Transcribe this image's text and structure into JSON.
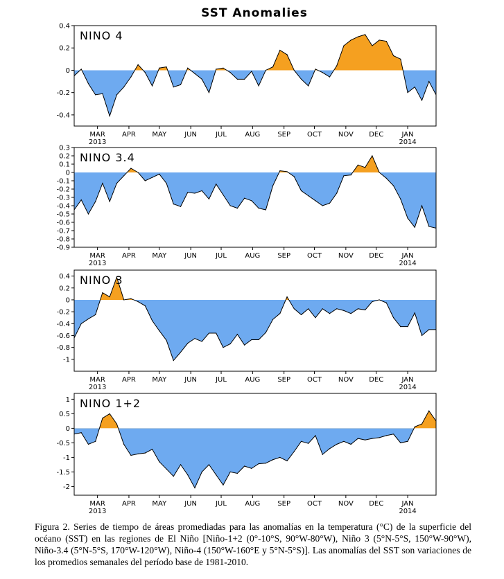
{
  "title": "SST Anomalies",
  "colors": {
    "positive": "#f5a020",
    "negative": "#6eaaf0",
    "line": "#000000"
  },
  "chart_data": [
    {
      "type": "area",
      "panel_label": "NINO 4",
      "ylim": [
        -0.5,
        0.4
      ],
      "yticks": [
        "0.4",
        "0.2",
        "0",
        "-0.2",
        "-0.4"
      ],
      "ytick_values": [
        0.4,
        0.2,
        0,
        -0.2,
        -0.4
      ],
      "x_tick_labels": [
        "MAR",
        "APR",
        "MAY",
        "JUN",
        "JUL",
        "AUG",
        "SEP",
        "OCT",
        "NOV",
        "DEC",
        "JAN"
      ],
      "year_labels": [
        "2013",
        "2014"
      ],
      "x": [
        "2013-02-06",
        "2013-02-13",
        "2013-02-20",
        "2013-02-27",
        "2013-03-06",
        "2013-03-13",
        "2013-03-20",
        "2013-03-27",
        "2013-04-03",
        "2013-04-10",
        "2013-04-17",
        "2013-04-24",
        "2013-05-01",
        "2013-05-08",
        "2013-05-15",
        "2013-05-22",
        "2013-05-29",
        "2013-06-05",
        "2013-06-12",
        "2013-06-19",
        "2013-06-26",
        "2013-07-03",
        "2013-07-10",
        "2013-07-17",
        "2013-07-24",
        "2013-07-31",
        "2013-08-07",
        "2013-08-14",
        "2013-08-21",
        "2013-08-28",
        "2013-09-04",
        "2013-09-11",
        "2013-09-18",
        "2013-09-25",
        "2013-10-02",
        "2013-10-09",
        "2013-10-16",
        "2013-10-23",
        "2013-10-30",
        "2013-11-06",
        "2013-11-13",
        "2013-11-20",
        "2013-11-27",
        "2013-12-04",
        "2013-12-11",
        "2013-12-18",
        "2013-12-25",
        "2014-01-01",
        "2014-01-08",
        "2014-01-15",
        "2014-01-22",
        "2014-01-29"
      ],
      "values": [
        -0.05,
        0.01,
        -0.12,
        -0.22,
        -0.21,
        -0.41,
        -0.22,
        -0.15,
        -0.06,
        0.05,
        -0.02,
        -0.14,
        0.02,
        0.03,
        -0.15,
        -0.13,
        0.02,
        -0.03,
        -0.08,
        -0.2,
        0.01,
        0.02,
        -0.02,
        -0.08,
        -0.08,
        -0.01,
        -0.14,
        0.0,
        0.03,
        0.18,
        0.14,
        0.0,
        -0.08,
        -0.14,
        0.01,
        -0.02,
        -0.06,
        0.04,
        0.22,
        0.27,
        0.3,
        0.32,
        0.22,
        0.27,
        0.26,
        0.13,
        0.1,
        -0.2,
        -0.15,
        -0.27,
        -0.1,
        -0.22
      ]
    },
    {
      "type": "area",
      "panel_label": "NINO 3.4",
      "ylim": [
        -0.9,
        0.3
      ],
      "yticks": [
        "0.3",
        "0.2",
        "0.1",
        "0",
        "-0.1",
        "-0.2",
        "-0.3",
        "-0.4",
        "-0.5",
        "-0.6",
        "-0.7",
        "-0.8",
        "-0.9"
      ],
      "ytick_values": [
        0.3,
        0.2,
        0.1,
        0,
        -0.1,
        -0.2,
        -0.3,
        -0.4,
        -0.5,
        -0.6,
        -0.7,
        -0.8,
        -0.9
      ],
      "x_tick_labels": [
        "MAR",
        "APR",
        "MAY",
        "JUN",
        "JUL",
        "AUG",
        "SEP",
        "OCT",
        "NOV",
        "DEC",
        "JAN"
      ],
      "year_labels": [
        "2013",
        "2014"
      ],
      "x": [
        "2013-02-06",
        "2013-02-13",
        "2013-02-20",
        "2013-02-27",
        "2013-03-06",
        "2013-03-13",
        "2013-03-20",
        "2013-03-27",
        "2013-04-03",
        "2013-04-10",
        "2013-04-17",
        "2013-04-24",
        "2013-05-01",
        "2013-05-08",
        "2013-05-15",
        "2013-05-22",
        "2013-05-29",
        "2013-06-05",
        "2013-06-12",
        "2013-06-19",
        "2013-06-26",
        "2013-07-03",
        "2013-07-10",
        "2013-07-17",
        "2013-07-24",
        "2013-07-31",
        "2013-08-07",
        "2013-08-14",
        "2013-08-21",
        "2013-08-28",
        "2013-09-04",
        "2013-09-11",
        "2013-09-18",
        "2013-09-25",
        "2013-10-02",
        "2013-10-09",
        "2013-10-16",
        "2013-10-23",
        "2013-10-30",
        "2013-11-06",
        "2013-11-13",
        "2013-11-20",
        "2013-11-27",
        "2013-12-04",
        "2013-12-11",
        "2013-12-18",
        "2013-12-25",
        "2014-01-01",
        "2014-01-08",
        "2014-01-15",
        "2014-01-22",
        "2014-01-29"
      ],
      "values": [
        -0.45,
        -0.33,
        -0.5,
        -0.35,
        -0.13,
        -0.35,
        -0.13,
        -0.04,
        0.05,
        0.0,
        -0.1,
        -0.06,
        -0.02,
        -0.13,
        -0.38,
        -0.41,
        -0.24,
        -0.25,
        -0.22,
        -0.32,
        -0.14,
        -0.27,
        -0.4,
        -0.43,
        -0.31,
        -0.34,
        -0.43,
        -0.45,
        -0.16,
        0.02,
        0.01,
        -0.05,
        -0.22,
        -0.28,
        -0.34,
        -0.4,
        -0.37,
        -0.25,
        -0.04,
        -0.03,
        0.09,
        0.06,
        0.2,
        0.0,
        -0.07,
        -0.16,
        -0.32,
        -0.55,
        -0.66,
        -0.4,
        -0.65,
        -0.67
      ]
    },
    {
      "type": "area",
      "panel_label": "NINO 3",
      "ylim": [
        -1.2,
        0.5
      ],
      "yticks": [
        "0.4",
        "0.2",
        "0",
        "-0.2",
        "-0.4",
        "-0.6",
        "-0.8",
        "-1"
      ],
      "ytick_values": [
        0.4,
        0.2,
        0,
        -0.2,
        -0.4,
        -0.6,
        -0.8,
        -1
      ],
      "x_tick_labels": [
        "MAR",
        "APR",
        "MAY",
        "JUN",
        "JUL",
        "AUG",
        "SEP",
        "OCT",
        "NOV",
        "DEC",
        "JAN"
      ],
      "year_labels": [
        "2013",
        "2014"
      ],
      "x": [
        "2013-02-06",
        "2013-02-13",
        "2013-02-20",
        "2013-02-27",
        "2013-03-06",
        "2013-03-13",
        "2013-03-20",
        "2013-03-27",
        "2013-04-03",
        "2013-04-10",
        "2013-04-17",
        "2013-04-24",
        "2013-05-01",
        "2013-05-08",
        "2013-05-15",
        "2013-05-22",
        "2013-05-29",
        "2013-06-05",
        "2013-06-12",
        "2013-06-19",
        "2013-06-26",
        "2013-07-03",
        "2013-07-10",
        "2013-07-17",
        "2013-07-24",
        "2013-07-31",
        "2013-08-07",
        "2013-08-14",
        "2013-08-21",
        "2013-08-28",
        "2013-09-04",
        "2013-09-11",
        "2013-09-18",
        "2013-09-25",
        "2013-10-02",
        "2013-10-09",
        "2013-10-16",
        "2013-10-23",
        "2013-10-30",
        "2013-11-06",
        "2013-11-13",
        "2013-11-20",
        "2013-11-27",
        "2013-12-04",
        "2013-12-11",
        "2013-12-18",
        "2013-12-25",
        "2014-01-01",
        "2014-01-08",
        "2014-01-15",
        "2014-01-22",
        "2014-01-29"
      ],
      "values": [
        -0.64,
        -0.4,
        -0.32,
        -0.25,
        0.12,
        0.05,
        0.38,
        0.0,
        0.02,
        -0.03,
        -0.1,
        -0.35,
        -0.52,
        -0.68,
        -1.02,
        -0.88,
        -0.73,
        -0.65,
        -0.7,
        -0.56,
        -0.56,
        -0.8,
        -0.74,
        -0.58,
        -0.76,
        -0.67,
        -0.67,
        -0.55,
        -0.33,
        -0.23,
        0.05,
        -0.15,
        -0.25,
        -0.15,
        -0.3,
        -0.15,
        -0.23,
        -0.15,
        -0.18,
        -0.23,
        -0.15,
        -0.17,
        -0.03,
        0.0,
        -0.05,
        -0.3,
        -0.45,
        -0.45,
        -0.22,
        -0.6,
        -0.5,
        -0.5
      ]
    },
    {
      "type": "area",
      "panel_label": "NINO 1+2",
      "ylim": [
        -2.3,
        1.2
      ],
      "yticks": [
        "1",
        "0.5",
        "0",
        "-0.5",
        "-1",
        "-1.5",
        "-2"
      ],
      "ytick_values": [
        1,
        0.5,
        0,
        -0.5,
        -1,
        -1.5,
        -2
      ],
      "x_tick_labels": [
        "MAR",
        "APR",
        "MAY",
        "JUN",
        "JUL",
        "AUG",
        "SEP",
        "OCT",
        "NOV",
        "DEC",
        "JAN"
      ],
      "year_labels": [
        "2013",
        "2014"
      ],
      "x": [
        "2013-02-06",
        "2013-02-13",
        "2013-02-20",
        "2013-02-27",
        "2013-03-06",
        "2013-03-13",
        "2013-03-20",
        "2013-03-27",
        "2013-04-03",
        "2013-04-10",
        "2013-04-17",
        "2013-04-24",
        "2013-05-01",
        "2013-05-08",
        "2013-05-15",
        "2013-05-22",
        "2013-05-29",
        "2013-06-05",
        "2013-06-12",
        "2013-06-19",
        "2013-06-26",
        "2013-07-03",
        "2013-07-10",
        "2013-07-17",
        "2013-07-24",
        "2013-07-31",
        "2013-08-07",
        "2013-08-14",
        "2013-08-21",
        "2013-08-28",
        "2013-09-04",
        "2013-09-11",
        "2013-09-18",
        "2013-09-25",
        "2013-10-02",
        "2013-10-09",
        "2013-10-16",
        "2013-10-23",
        "2013-10-30",
        "2013-11-06",
        "2013-11-13",
        "2013-11-20",
        "2013-11-27",
        "2013-12-04",
        "2013-12-11",
        "2013-12-18",
        "2013-12-25",
        "2014-01-01",
        "2014-01-08",
        "2014-01-15",
        "2014-01-22",
        "2014-01-29"
      ],
      "values": [
        -0.2,
        -0.15,
        -0.55,
        -0.45,
        0.35,
        0.5,
        0.15,
        -0.55,
        -0.93,
        -0.88,
        -0.85,
        -0.72,
        -1.15,
        -1.4,
        -1.65,
        -1.25,
        -1.6,
        -2.05,
        -1.5,
        -1.25,
        -1.6,
        -1.95,
        -1.5,
        -1.55,
        -1.3,
        -1.38,
        -1.22,
        -1.2,
        -1.08,
        -1.0,
        -1.12,
        -0.8,
        -0.45,
        -0.52,
        -0.25,
        -0.9,
        -0.7,
        -0.55,
        -0.45,
        -0.55,
        -0.35,
        -0.4,
        -0.35,
        -0.32,
        -0.25,
        -0.2,
        -0.5,
        -0.45,
        0.05,
        0.15,
        0.6,
        0.25
      ]
    }
  ],
  "caption": "Figura 2. Series de tiempo de áreas promediadas para las anomalías en la temperatura (°C) de la superficie del océano (SST) en las regiones de El Niño [Niño-1+2 (0°-10°S, 90°W-80°W), Niño 3 (5°N-5°S, 150°W-90°W), Niño-3.4 (5°N-5°S, 170°W-120°W), Niño-4 (150°W-160°E y 5°N-5°S)]. Las anomalías del SST son variaciones de los promedios semanales del período base de 1981-2010."
}
